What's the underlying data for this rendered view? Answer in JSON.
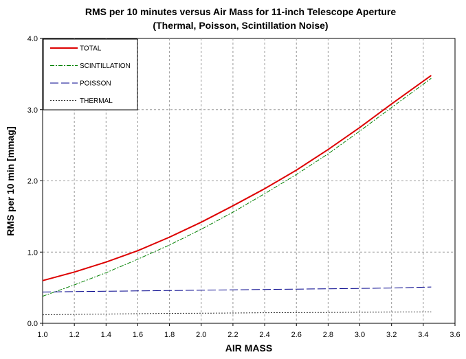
{
  "chart_data": {
    "type": "line",
    "title": "RMS per 10 minutes versus Air Mass for 11-inch Telescope Aperture",
    "subtitle": "(Thermal, Poisson, Scintillation Noise)",
    "xlabel": "AIR MASS",
    "ylabel": "RMS per 10 min [mmag]",
    "xlim": [
      1.0,
      3.6
    ],
    "ylim": [
      0.0,
      4.0
    ],
    "xticks": [
      "1.0",
      "1.2",
      "1.4",
      "1.6",
      "1.8",
      "2.0",
      "2.2",
      "2.4",
      "2.6",
      "2.8",
      "3.0",
      "3.2",
      "3.4",
      "3.6"
    ],
    "yticks": [
      "0.0",
      "1.0",
      "2.0",
      "3.0",
      "4.0"
    ],
    "grid": true,
    "legend_position": "top-left",
    "x": [
      1.0,
      1.2,
      1.4,
      1.6,
      1.8,
      2.0,
      2.2,
      2.4,
      2.6,
      2.8,
      3.0,
      3.2,
      3.45
    ],
    "series": [
      {
        "name": "TOTAL",
        "color": "#dd0000",
        "style": "solid",
        "values": [
          0.6,
          0.72,
          0.86,
          1.02,
          1.21,
          1.42,
          1.65,
          1.89,
          2.15,
          2.44,
          2.75,
          3.08,
          3.48
        ]
      },
      {
        "name": "SCINTILLATION",
        "color": "#008000",
        "style": "dashdot",
        "values": [
          0.38,
          0.54,
          0.71,
          0.9,
          1.1,
          1.32,
          1.56,
          1.82,
          2.09,
          2.38,
          2.7,
          3.03,
          3.44
        ]
      },
      {
        "name": "POISSON",
        "color": "#00008b",
        "style": "longdash",
        "values": [
          0.44,
          0.445,
          0.45,
          0.455,
          0.46,
          0.465,
          0.47,
          0.475,
          0.48,
          0.485,
          0.49,
          0.495,
          0.51
        ]
      },
      {
        "name": "THERMAL",
        "color": "#333333",
        "style": "dotted",
        "values": [
          0.12,
          0.125,
          0.13,
          0.135,
          0.14,
          0.142,
          0.145,
          0.148,
          0.15,
          0.152,
          0.155,
          0.158,
          0.16
        ]
      }
    ]
  }
}
